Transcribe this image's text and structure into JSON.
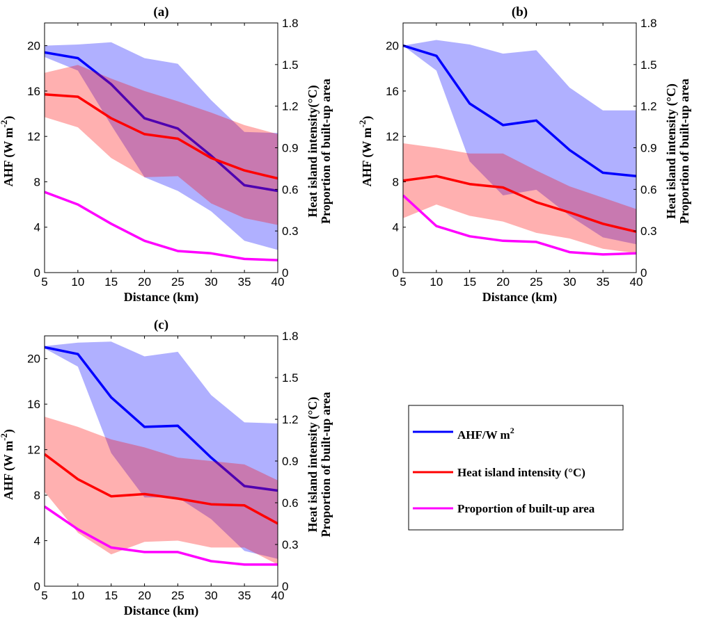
{
  "chart_data": [
    {
      "type": "line",
      "title": "(a)",
      "xlabel": "Distance (km)",
      "ylabel": "AHF (W m-2)",
      "ylabel_main": "AHF (W m",
      "ylabel_sup": "-2",
      "ylabel_close": ")",
      "y2label_line1": "Heat island intensity(°C)",
      "y2label_line2": "Proportion of built-up area",
      "xlim": [
        5,
        40
      ],
      "ylim": [
        0,
        22
      ],
      "y2lim": [
        0,
        1.8
      ],
      "xticks": [
        "5",
        "10",
        "15",
        "20",
        "25",
        "30",
        "35",
        "40"
      ],
      "yticks": [
        "0",
        "4",
        "8",
        "12",
        "16",
        "20"
      ],
      "y2ticks": [
        "0",
        "0.3",
        "0.6",
        "0.9",
        "1.2",
        "1.5",
        "1.8"
      ],
      "x": [
        5,
        10,
        15,
        20,
        25,
        30,
        35,
        40
      ],
      "series": [
        {
          "name": "AHF",
          "color": "#0000ff",
          "values": [
            19.4,
            18.9,
            16.6,
            13.6,
            12.7,
            10.3,
            7.7,
            7.2
          ],
          "band_upper": [
            20.0,
            20.1,
            20.3,
            18.9,
            18.4,
            15.2,
            12.4,
            12.3
          ],
          "band_lower": [
            19.0,
            17.8,
            13.0,
            8.4,
            7.2,
            5.4,
            2.8,
            2.0
          ]
        },
        {
          "name": "Heat island intensity",
          "color": "#ff0000",
          "values": [
            15.7,
            15.5,
            13.6,
            12.2,
            11.8,
            10.1,
            9.0,
            8.3
          ],
          "band_upper": [
            17.6,
            18.3,
            17.1,
            16.0,
            15.1,
            14.1,
            13.0,
            12.2
          ],
          "band_lower": [
            13.7,
            12.8,
            10.1,
            8.4,
            8.5,
            6.1,
            4.8,
            4.2
          ]
        },
        {
          "name": "Proportion of built-up area",
          "color": "#ff00ff",
          "values": [
            7.1,
            6.0,
            4.3,
            2.8,
            1.9,
            1.7,
            1.2,
            1.1
          ]
        }
      ]
    },
    {
      "type": "line",
      "title": "(b)",
      "xlabel": "Distance (km)",
      "ylabel": "AHF (W m-2)",
      "ylabel_main": "AHF (W m",
      "ylabel_sup": "-2",
      "ylabel_close": ")",
      "y2label_line1": "Heat island intensity (°C)",
      "y2label_line2": "Proportion of built-up area",
      "xlim": [
        5,
        40
      ],
      "ylim": [
        0,
        22
      ],
      "y2lim": [
        0,
        1.8
      ],
      "xticks": [
        "5",
        "10",
        "15",
        "20",
        "25",
        "30",
        "35",
        "40"
      ],
      "yticks": [
        "0",
        "4",
        "8",
        "12",
        "16",
        "20"
      ],
      "y2ticks": [
        "0",
        "0.3",
        "0.6",
        "0.9",
        "1.2",
        "1.5",
        "1.8"
      ],
      "x": [
        5,
        10,
        15,
        20,
        25,
        30,
        35,
        40
      ],
      "series": [
        {
          "name": "AHF",
          "color": "#0000ff",
          "values": [
            20.0,
            19.1,
            14.9,
            13.0,
            13.4,
            10.8,
            8.8,
            8.5
          ],
          "band_upper": [
            20.0,
            20.5,
            20.1,
            19.3,
            19.6,
            16.3,
            14.3,
            14.3
          ],
          "band_lower": [
            20.0,
            17.8,
            9.8,
            6.8,
            7.3,
            5.0,
            3.1,
            2.5
          ]
        },
        {
          "name": "Heat island intensity",
          "color": "#ff0000",
          "values": [
            8.1,
            8.5,
            7.8,
            7.5,
            6.2,
            5.3,
            4.3,
            3.6
          ],
          "band_upper": [
            11.4,
            11.0,
            10.5,
            10.5,
            9.0,
            7.6,
            6.6,
            5.6
          ],
          "band_lower": [
            4.8,
            6.0,
            5.0,
            4.5,
            3.5,
            3.0,
            2.1,
            1.7
          ]
        },
        {
          "name": "Proportion of built-up area",
          "color": "#ff00ff",
          "values": [
            6.8,
            4.1,
            3.2,
            2.8,
            2.7,
            1.8,
            1.6,
            1.7
          ]
        }
      ]
    },
    {
      "type": "line",
      "title": "(c)",
      "xlabel": "Distance (km)",
      "ylabel": "AHF (W m-2)",
      "ylabel_main": "AHF (W m",
      "ylabel_sup": "-2",
      "ylabel_close": ")",
      "y2label_line1": "Heat island intensity (°C)",
      "y2label_line2": "Proportion of built-up area",
      "xlim": [
        5,
        40
      ],
      "ylim": [
        0,
        22
      ],
      "y2lim": [
        0,
        1.8
      ],
      "xticks": [
        "5",
        "10",
        "15",
        "20",
        "25",
        "30",
        "35",
        "40"
      ],
      "yticks": [
        "0",
        "4",
        "8",
        "12",
        "16",
        "20"
      ],
      "y2ticks": [
        "0",
        "0.3",
        "0.6",
        "0.9",
        "1.2",
        "1.5",
        "1.8"
      ],
      "x": [
        5,
        10,
        15,
        20,
        25,
        30,
        35,
        40
      ],
      "series": [
        {
          "name": "AHF",
          "color": "#0000ff",
          "values": [
            21.0,
            20.4,
            16.6,
            14.0,
            14.1,
            11.3,
            8.8,
            8.4
          ],
          "band_upper": [
            21.1,
            21.4,
            21.5,
            20.2,
            20.6,
            16.8,
            14.4,
            14.3
          ],
          "band_lower": [
            20.9,
            19.3,
            11.7,
            7.8,
            7.8,
            5.9,
            3.1,
            2.4
          ]
        },
        {
          "name": "Heat island intensity",
          "color": "#ff0000",
          "values": [
            11.6,
            9.4,
            7.9,
            8.1,
            7.7,
            7.2,
            7.1,
            5.5
          ],
          "band_upper": [
            14.9,
            14.0,
            12.9,
            12.2,
            11.3,
            11.0,
            10.7,
            9.3
          ],
          "band_lower": [
            8.3,
            4.7,
            2.8,
            3.9,
            4.0,
            3.4,
            3.4,
            1.9
          ]
        },
        {
          "name": "Proportion of built-up area",
          "color": "#ff00ff",
          "values": [
            7.0,
            5.0,
            3.4,
            3.0,
            3.0,
            2.2,
            1.9,
            1.9
          ]
        }
      ]
    }
  ],
  "legend": {
    "placement": "bottom-right",
    "items": [
      {
        "label": "AHF/W m",
        "sup": "2",
        "color": "#0000ff"
      },
      {
        "label": "Heat island intensity (°C)",
        "sup": "",
        "color": "#ff0000"
      },
      {
        "label": "Proportion of built-up area",
        "sup": "",
        "color": "#ff00ff"
      }
    ]
  }
}
